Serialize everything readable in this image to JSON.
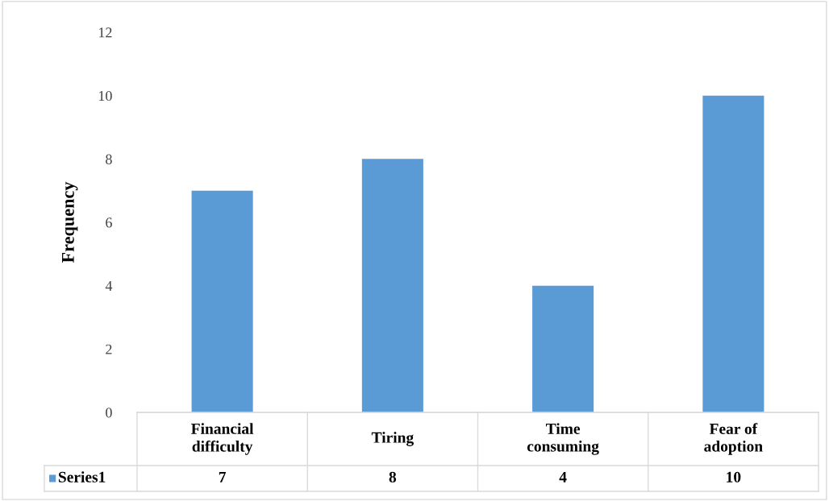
{
  "chart_data": {
    "type": "bar",
    "ylabel": "Frequency",
    "categories": [
      "Financial\ndifficulty",
      "Tiring",
      "Time\nconsuming",
      "Fear of\nadoption"
    ],
    "series": [
      {
        "name": "Series1",
        "color": "#5b9bd5",
        "values": [
          7,
          8,
          4,
          10
        ]
      }
    ],
    "ylim": [
      0,
      12
    ],
    "yticks": [
      0,
      2,
      4,
      6,
      8,
      10,
      12
    ],
    "grid": false,
    "data_labels": true
  }
}
